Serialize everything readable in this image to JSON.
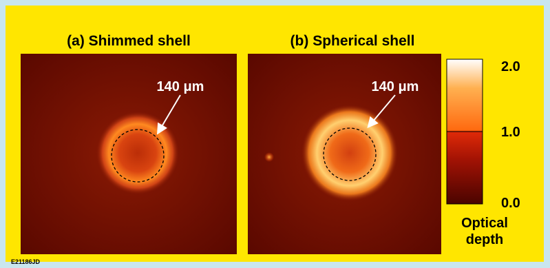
{
  "panels": [
    {
      "label": "a",
      "title": "Shimmed shell",
      "annotation": "140 μm"
    },
    {
      "label": "b",
      "title": "Spherical shell",
      "annotation": "140 μm"
    }
  ],
  "colorbar": {
    "ticks": [
      {
        "value": 0,
        "label": "0.0"
      },
      {
        "value": 1,
        "label": "1.0"
      },
      {
        "value": 2,
        "label": "2.0"
      }
    ],
    "label": "Optical depth"
  },
  "figure_id": "E21186JD"
}
